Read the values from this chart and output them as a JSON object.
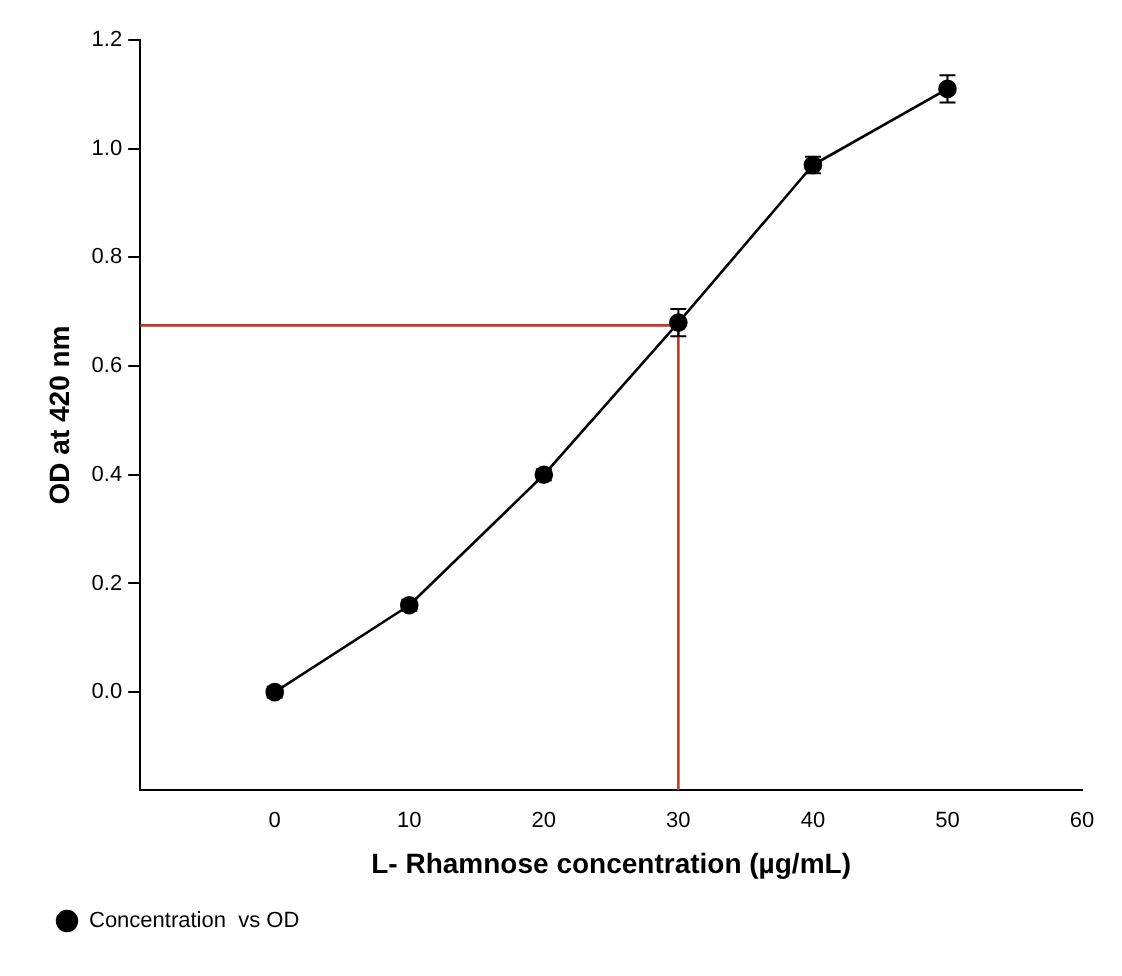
{
  "chart_data": {
    "type": "line",
    "xlabel": "L- Rhamnose concentration (µg/mL)",
    "ylabel": "OD at 420 nm",
    "xlim": [
      -10,
      60
    ],
    "xticks": [
      0,
      10,
      20,
      30,
      40,
      50,
      60
    ],
    "ylim": [
      -0.18,
      1.2
    ],
    "yticks": [
      {
        "value": 0,
        "label": "0.0"
      },
      0.2,
      0.4,
      0.6,
      0.8,
      {
        "value": 1,
        "label": "1.0"
      },
      1.2
    ],
    "grid": false,
    "legend": "bottom left",
    "marker": "circle",
    "line_style": "solid",
    "series": [
      {
        "name": "Concentration  vs OD",
        "color": "#000000",
        "x": [
          0,
          10,
          20,
          30,
          40,
          50
        ],
        "values": [
          0,
          0.16,
          0.4,
          0.68,
          0.97,
          1.11
        ],
        "errors": [
          0.01,
          0.01,
          0.01,
          0.025,
          0.015,
          0.025
        ]
      },
      {
        "color": "#c0392b",
        "marker": "none",
        "x": [
          -10,
          30,
          30
        ],
        "values": [
          0.675,
          0.675,
          -0.18
        ]
      }
    ]
  }
}
